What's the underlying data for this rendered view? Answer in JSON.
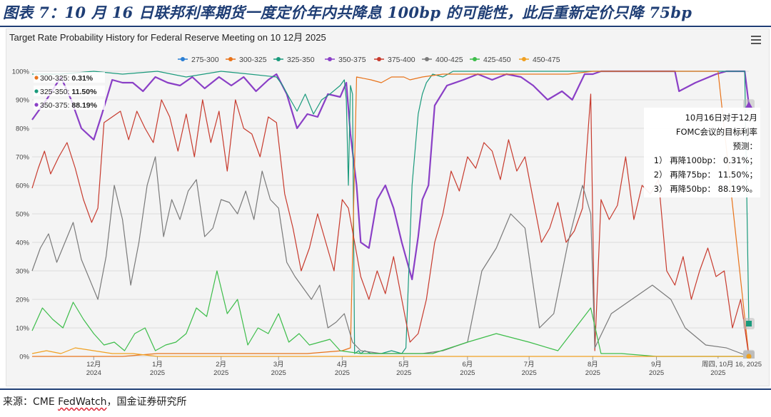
{
  "figure_title": "图表 7：10 月 16 日联邦利率期货一度定价年内共降息 100bp 的可能性，此后重新定价只降 75bp",
  "source": {
    "prefix": "来源：CME ",
    "underlined": "FedWatch",
    "suffix": "，国金证券研究所"
  },
  "toolbar": {
    "menu_icon": "hamburger-menu-icon"
  },
  "annotation": {
    "lines": [
      "10月16日对于12月",
      "FOMC会议的目标利率",
      "预测：",
      "1） 再降100bp： 0.31%；",
      "2） 再降75bp： 11.50%；",
      "3） 再降50bp： 88.19%。"
    ]
  },
  "chart_data": {
    "type": "line",
    "title": "Target Rate Probability History for Federal Reserve Meeting on 10 12月 2025",
    "yaxis": {
      "min": 0,
      "max": 100,
      "ticks": [
        "0%",
        "10%",
        "20%",
        "30%",
        "40%",
        "50%",
        "60%",
        "70%",
        "80%",
        "90%",
        "100%"
      ]
    },
    "xaxis": {
      "start": "2024-11-01",
      "end": "2025-10-16",
      "ticks": [
        {
          "date": "2024-12-01",
          "month": "12月",
          "year": "2024"
        },
        {
          "date": "2025-01-01",
          "month": "1月",
          "year": "2025"
        },
        {
          "date": "2025-02-01",
          "month": "2月",
          "year": "2025"
        },
        {
          "date": "2025-03-01",
          "month": "3月",
          "year": "2025"
        },
        {
          "date": "2025-04-01",
          "month": "4月",
          "year": "2025"
        },
        {
          "date": "2025-05-01",
          "month": "5月",
          "year": "2025"
        },
        {
          "date": "2025-06-01",
          "month": "6月",
          "year": "2025"
        },
        {
          "date": "2025-07-01",
          "month": "7月",
          "year": "2025"
        },
        {
          "date": "2025-08-01",
          "month": "8月",
          "year": "2025"
        },
        {
          "date": "2025-09-01",
          "month": "9月",
          "year": "2025"
        },
        {
          "date": "2025-10-01",
          "month": "",
          "year": "2025"
        }
      ],
      "hover_label": "周四, 10月 16, 2025"
    },
    "legend": [
      "275-300",
      "300-325",
      "325-350",
      "350-375",
      "375-400",
      "400-425",
      "425-450",
      "450-475"
    ],
    "colors": {
      "275-300": "#2a7fd4",
      "300-325": "#e8731a",
      "325-350": "#1a9a7c",
      "350-375": "#8a3fc6",
      "375-400": "#c73a2d",
      "400-425": "#7a7a7a",
      "425-450": "#3dbd4a",
      "450-475": "#f0a020"
    },
    "tooltip": [
      {
        "label": "300-325",
        "value": "0.31%",
        "color": "#e8731a"
      },
      {
        "label": "325-350",
        "value": "11.50%",
        "color": "#1a9a7c"
      },
      {
        "label": "350-375",
        "value": "88.19%",
        "color": "#8a3fc6"
      }
    ],
    "series": [
      {
        "name": "350-375",
        "dates": [
          "2024-11-01",
          "2024-11-08",
          "2024-11-15",
          "2024-11-20",
          "2024-11-25",
          "2024-12-01",
          "2024-12-05",
          "2024-12-10",
          "2024-12-15",
          "2024-12-20",
          "2024-12-25",
          "2024-12-31",
          "2025-01-06",
          "2025-01-12",
          "2025-01-18",
          "2025-01-24",
          "2025-01-31",
          "2025-02-06",
          "2025-02-12",
          "2025-02-18",
          "2025-02-24",
          "2025-02-28",
          "2025-03-05",
          "2025-03-10",
          "2025-03-15",
          "2025-03-20",
          "2025-03-25",
          "2025-03-31",
          "2025-04-03",
          "2025-04-05",
          "2025-04-08",
          "2025-04-10",
          "2025-04-14",
          "2025-04-18",
          "2025-04-22",
          "2025-04-26",
          "2025-04-30",
          "2025-05-05",
          "2025-05-08",
          "2025-05-10",
          "2025-05-13",
          "2025-05-16",
          "2025-05-22",
          "2025-05-30",
          "2025-06-06",
          "2025-06-13",
          "2025-06-20",
          "2025-06-27",
          "2025-07-03",
          "2025-07-10",
          "2025-07-17",
          "2025-07-22",
          "2025-07-28",
          "2025-08-01",
          "2025-08-05",
          "2025-08-12",
          "2025-08-20",
          "2025-08-28",
          "2025-09-05",
          "2025-09-10",
          "2025-09-12",
          "2025-09-20",
          "2025-09-30",
          "2025-10-05",
          "2025-10-10",
          "2025-10-14",
          "2025-10-16"
        ],
        "values": [
          83,
          90,
          98,
          90,
          80,
          76,
          85,
          97,
          96,
          96,
          93,
          98,
          96,
          95,
          98,
          94,
          98,
          95,
          98,
          93,
          97,
          99,
          92,
          80,
          85,
          84,
          92,
          91,
          96,
          78,
          60,
          40,
          38,
          55,
          60,
          52,
          40,
          27,
          42,
          55,
          60,
          88,
          95,
          97,
          99,
          97,
          99,
          98,
          95,
          90,
          93,
          90,
          99,
          99,
          100,
          100,
          100,
          100,
          100,
          100,
          93,
          96,
          99,
          100,
          100,
          100,
          88.19
        ]
      },
      {
        "name": "325-350",
        "dates": [
          "2024-11-01",
          "2024-11-15",
          "2024-12-01",
          "2024-12-15",
          "2025-01-01",
          "2025-01-15",
          "2025-02-01",
          "2025-02-15",
          "2025-02-28",
          "2025-03-03",
          "2025-03-06",
          "2025-03-10",
          "2025-03-14",
          "2025-03-18",
          "2025-03-22",
          "2025-03-26",
          "2025-03-31",
          "2025-04-02",
          "2025-04-03",
          "2025-04-04",
          "2025-04-05",
          "2025-04-06",
          "2025-04-07",
          "2025-04-09",
          "2025-04-10",
          "2025-04-12",
          "2025-04-15",
          "2025-04-20",
          "2025-04-25",
          "2025-04-30",
          "2025-05-02",
          "2025-05-05",
          "2025-05-08",
          "2025-05-10",
          "2025-05-12",
          "2025-05-15",
          "2025-05-20",
          "2025-05-25",
          "2025-06-01",
          "2025-06-15",
          "2025-07-01",
          "2025-07-15",
          "2025-08-01",
          "2025-08-15",
          "2025-09-01",
          "2025-09-15",
          "2025-10-01",
          "2025-10-14",
          "2025-10-16"
        ],
        "values": [
          99,
          99,
          100,
          99,
          100,
          98,
          100,
          99,
          98,
          95,
          91,
          86,
          92,
          85,
          90,
          92,
          95,
          97,
          90,
          60,
          95,
          92,
          1,
          2,
          1,
          2,
          1,
          1,
          2,
          1,
          3,
          60,
          85,
          92,
          96,
          99,
          98,
          100,
          100,
          100,
          100,
          100,
          100,
          100,
          100,
          100,
          100,
          100,
          11.5
        ]
      },
      {
        "name": "300-325",
        "dates": [
          "2024-11-01",
          "2024-11-15",
          "2024-12-01",
          "2024-12-15",
          "2025-01-01",
          "2025-01-15",
          "2025-02-01",
          "2025-02-15",
          "2025-03-01",
          "2025-03-15",
          "2025-04-01",
          "2025-04-05",
          "2025-04-08",
          "2025-04-15",
          "2025-04-20",
          "2025-04-25",
          "2025-05-01",
          "2025-05-04",
          "2025-05-10",
          "2025-05-20",
          "2025-06-01",
          "2025-06-20",
          "2025-07-01",
          "2025-07-20",
          "2025-08-01",
          "2025-08-15",
          "2025-09-01",
          "2025-09-20",
          "2025-10-01",
          "2025-10-16"
        ],
        "values": [
          0,
          0,
          0,
          0,
          1,
          1,
          1,
          1,
          1,
          1,
          2,
          3,
          98,
          97,
          96,
          98,
          98,
          97,
          98,
          99,
          99,
          99,
          99,
          99,
          100,
          100,
          100,
          100,
          100,
          0.31
        ]
      },
      {
        "name": "375-400",
        "dates": [
          "2024-11-01",
          "2024-11-04",
          "2024-11-07",
          "2024-11-10",
          "2024-11-14",
          "2024-11-18",
          "2024-11-22",
          "2024-11-26",
          "2024-11-30",
          "2024-12-03",
          "2024-12-06",
          "2024-12-10",
          "2024-12-14",
          "2024-12-18",
          "2024-12-22",
          "2024-12-26",
          "2024-12-30",
          "2025-01-03",
          "2025-01-07",
          "2025-01-11",
          "2025-01-15",
          "2025-01-19",
          "2025-01-23",
          "2025-01-27",
          "2025-01-31",
          "2025-02-04",
          "2025-02-08",
          "2025-02-12",
          "2025-02-16",
          "2025-02-20",
          "2025-02-24",
          "2025-02-28",
          "2025-03-04",
          "2025-03-08",
          "2025-03-12",
          "2025-03-16",
          "2025-03-20",
          "2025-03-24",
          "2025-03-28",
          "2025-04-01",
          "2025-04-04",
          "2025-04-07",
          "2025-04-10",
          "2025-04-14",
          "2025-04-18",
          "2025-04-22",
          "2025-04-26",
          "2025-04-30",
          "2025-05-04",
          "2025-05-08",
          "2025-05-12",
          "2025-05-16",
          "2025-05-20",
          "2025-05-24",
          "2025-05-28",
          "2025-06-01",
          "2025-06-05",
          "2025-06-09",
          "2025-06-13",
          "2025-06-17",
          "2025-06-21",
          "2025-06-25",
          "2025-06-29",
          "2025-07-03",
          "2025-07-07",
          "2025-07-11",
          "2025-07-15",
          "2025-07-19",
          "2025-07-23",
          "2025-07-27",
          "2025-07-31",
          "2025-08-02",
          "2025-08-05",
          "2025-08-09",
          "2025-08-13",
          "2025-08-17",
          "2025-08-21",
          "2025-08-25",
          "2025-08-29",
          "2025-09-02",
          "2025-09-06",
          "2025-09-10",
          "2025-09-14",
          "2025-09-18",
          "2025-09-22",
          "2025-09-26",
          "2025-09-30",
          "2025-10-04",
          "2025-10-08",
          "2025-10-12",
          "2025-10-16"
        ],
        "values": [
          59,
          66,
          72,
          64,
          70,
          75,
          66,
          55,
          47,
          52,
          82,
          84,
          86,
          76,
          86,
          80,
          75,
          90,
          84,
          72,
          85,
          70,
          90,
          75,
          86,
          65,
          90,
          80,
          78,
          70,
          84,
          82,
          57,
          45,
          30,
          38,
          50,
          40,
          30,
          55,
          52,
          40,
          28,
          20,
          30,
          22,
          35,
          20,
          5,
          8,
          20,
          40,
          50,
          65,
          58,
          70,
          66,
          75,
          72,
          62,
          76,
          65,
          70,
          55,
          40,
          45,
          54,
          40,
          44,
          52,
          92,
          2,
          55,
          48,
          53,
          70,
          48,
          60,
          57,
          62,
          30,
          25,
          35,
          20,
          30,
          38,
          28,
          30,
          10,
          20,
          0
        ]
      },
      {
        "name": "400-425",
        "dates": [
          "2024-11-01",
          "2024-11-05",
          "2024-11-09",
          "2024-11-13",
          "2024-11-17",
          "2024-11-21",
          "2024-11-25",
          "2024-11-29",
          "2024-12-03",
          "2024-12-07",
          "2024-12-11",
          "2024-12-15",
          "2024-12-19",
          "2024-12-23",
          "2024-12-27",
          "2024-12-31",
          "2025-01-04",
          "2025-01-08",
          "2025-01-12",
          "2025-01-16",
          "2025-01-20",
          "2025-01-24",
          "2025-01-28",
          "2025-02-01",
          "2025-02-05",
          "2025-02-09",
          "2025-02-13",
          "2025-02-17",
          "2025-02-21",
          "2025-02-25",
          "2025-03-01",
          "2025-03-05",
          "2025-03-09",
          "2025-03-13",
          "2025-03-17",
          "2025-03-21",
          "2025-03-25",
          "2025-03-29",
          "2025-04-02",
          "2025-04-06",
          "2025-04-10",
          "2025-04-20",
          "2025-05-01",
          "2025-05-10",
          "2025-05-20",
          "2025-06-01",
          "2025-06-08",
          "2025-06-15",
          "2025-06-22",
          "2025-06-29",
          "2025-07-06",
          "2025-07-13",
          "2025-07-20",
          "2025-07-27",
          "2025-07-31",
          "2025-08-02",
          "2025-08-10",
          "2025-08-20",
          "2025-08-30",
          "2025-09-08",
          "2025-09-15",
          "2025-09-25",
          "2025-10-05",
          "2025-10-16"
        ],
        "values": [
          30,
          38,
          43,
          33,
          40,
          47,
          34,
          27,
          20,
          35,
          60,
          48,
          25,
          40,
          60,
          70,
          42,
          55,
          48,
          58,
          62,
          42,
          45,
          55,
          54,
          50,
          58,
          48,
          65,
          55,
          52,
          33,
          28,
          24,
          20,
          25,
          10,
          12,
          15,
          5,
          2,
          1,
          1,
          1,
          2,
          5,
          30,
          38,
          50,
          45,
          10,
          15,
          40,
          60,
          50,
          3,
          15,
          20,
          25,
          20,
          10,
          4,
          3,
          0
        ]
      },
      {
        "name": "425-450",
        "dates": [
          "2024-11-01",
          "2024-11-06",
          "2024-11-11",
          "2024-11-16",
          "2024-11-21",
          "2024-11-26",
          "2024-12-01",
          "2024-12-06",
          "2024-12-11",
          "2024-12-16",
          "2024-12-21",
          "2024-12-26",
          "2024-12-31",
          "2025-01-05",
          "2025-01-10",
          "2025-01-15",
          "2025-01-20",
          "2025-01-25",
          "2025-01-30",
          "2025-02-04",
          "2025-02-09",
          "2025-02-14",
          "2025-02-19",
          "2025-02-24",
          "2025-03-01",
          "2025-03-06",
          "2025-03-11",
          "2025-03-16",
          "2025-03-21",
          "2025-03-26",
          "2025-03-31",
          "2025-04-10",
          "2025-04-20",
          "2025-05-01",
          "2025-05-15",
          "2025-06-01",
          "2025-06-15",
          "2025-07-01",
          "2025-07-15",
          "2025-07-31",
          "2025-08-05",
          "2025-08-15",
          "2025-09-01",
          "2025-09-15",
          "2025-10-16"
        ],
        "values": [
          9,
          17,
          13,
          10,
          19,
          13,
          8,
          4,
          5,
          2,
          8,
          10,
          2,
          4,
          5,
          8,
          17,
          14,
          30,
          15,
          20,
          4,
          10,
          8,
          15,
          5,
          8,
          4,
          5,
          6,
          2,
          1,
          1,
          1,
          1,
          5,
          8,
          5,
          2,
          17,
          1,
          1,
          0,
          0,
          0
        ]
      },
      {
        "name": "450-475",
        "dates": [
          "2024-11-01",
          "2024-11-08",
          "2024-11-15",
          "2024-11-22",
          "2024-12-01",
          "2024-12-10",
          "2024-12-20",
          "2025-01-01",
          "2025-01-15",
          "2025-02-01",
          "2025-10-16"
        ],
        "values": [
          1,
          2,
          1,
          3,
          2,
          1,
          1,
          0,
          0,
          0,
          0
        ]
      }
    ]
  }
}
